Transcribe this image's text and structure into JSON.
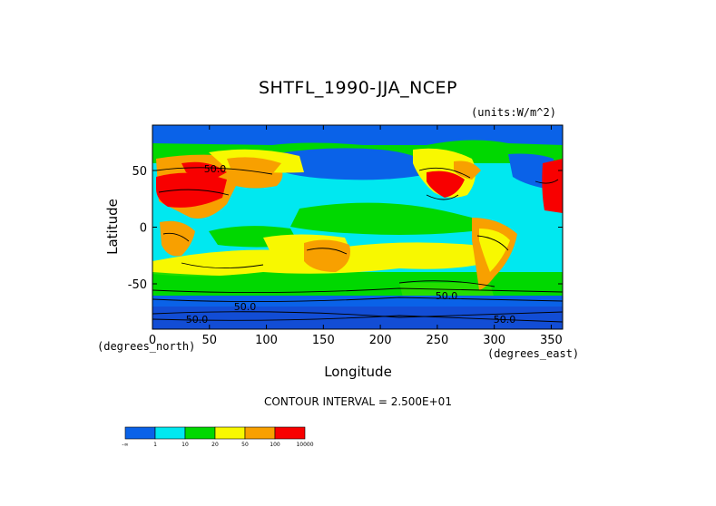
{
  "chart_data": {
    "type": "heatmap",
    "title": "SHTFL_1990-JJA_NCEP",
    "units_label": "(units:W/m^2)",
    "xlabel": "Longitude",
    "ylabel": "Latitude",
    "x_unit_label": "(degrees_east)",
    "y_unit_label": "(degrees_north)",
    "xlim": [
      0,
      360
    ],
    "ylim": [
      -90,
      90
    ],
    "x_ticks": [
      0,
      50,
      100,
      150,
      200,
      250,
      300,
      350
    ],
    "y_ticks": [
      -50,
      0,
      50
    ],
    "contour_interval_text": "CONTOUR INTERVAL = 2.500E+01",
    "contour_labels": [
      "50.0",
      "50.0",
      "50.0",
      "50.0",
      "50.0"
    ],
    "colorbar": {
      "levels": [
        "-∞",
        "1",
        "10",
        "20",
        "50",
        "100",
        "10000"
      ],
      "colors": [
        "#0a62e8",
        "#00e8f0",
        "#00d800",
        "#f8f800",
        "#f8a000",
        "#f80000"
      ]
    }
  }
}
